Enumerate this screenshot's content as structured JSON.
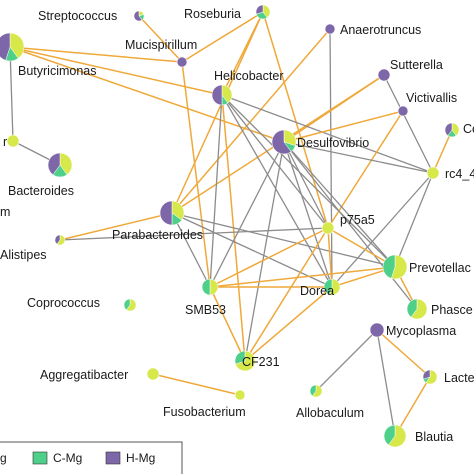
{
  "colors": {
    "low_mg": "#d6e84a",
    "c_mg": "#4fd08a",
    "h_mg": "#7e67a8",
    "edge_positive": "#efa93a",
    "edge_negative": "#8c8c8c",
    "legend_border": "#555555"
  },
  "nodes": [
    {
      "id": "Streptococcus",
      "label": "Streptococcus",
      "shares": [
        0.2,
        0.2,
        0.6
      ]
    },
    {
      "id": "Roseburia",
      "label": "Roseburia",
      "shares": [
        0.4,
        0.3,
        0.3
      ]
    },
    {
      "id": "Anaerotruncus",
      "label": "Anaerotruncus",
      "shares": [
        0,
        0,
        1
      ]
    },
    {
      "id": "Butyricimonas",
      "label": "Butyricimonas",
      "shares": [
        0.4,
        0.15,
        0.45
      ]
    },
    {
      "id": "Mucispirillum",
      "label": "Mucispirillum",
      "shares": [
        0,
        0,
        1
      ]
    },
    {
      "id": "Sutterella",
      "label": "Sutterella",
      "shares": [
        0,
        0,
        1
      ]
    },
    {
      "id": "Helicobacter",
      "label": "Helicobacter",
      "shares": [
        0.4,
        0.1,
        0.5
      ]
    },
    {
      "id": "Victivallis",
      "label": "Victivallis",
      "shares": [
        0,
        0,
        1
      ]
    },
    {
      "id": "Desulfovibrio",
      "label": "Desulfovibrio",
      "shares": [
        0.3,
        0.1,
        0.6
      ]
    },
    {
      "id": "Ce",
      "label": "Ce",
      "shares": [
        0.4,
        0.2,
        0.4
      ]
    },
    {
      "id": "r_left",
      "label": "r",
      "shares": [
        1,
        0,
        0
      ]
    },
    {
      "id": "Bacteroides",
      "label": "Bacteroides",
      "shares": [
        0.4,
        0.2,
        0.4
      ]
    },
    {
      "id": "rc4_4",
      "label": "rc4_4",
      "shares": [
        1,
        0,
        0
      ]
    },
    {
      "id": "m_left",
      "label": "m",
      "shares": [
        1,
        0,
        0
      ]
    },
    {
      "id": "p75a5",
      "label": "p75a5",
      "shares": [
        1,
        0,
        0
      ]
    },
    {
      "id": "Parabacteroides",
      "label": "Parabacteroides",
      "shares": [
        0.35,
        0.15,
        0.5
      ]
    },
    {
      "id": "Alistipes",
      "label": "Alistipes",
      "shares": [
        0.6,
        0,
        0.4
      ]
    },
    {
      "id": "Prevotella",
      "label": "Prevotellac",
      "shares": [
        0.55,
        0.45,
        0
      ]
    },
    {
      "id": "Dorea",
      "label": "Dorea",
      "shares": [
        0.55,
        0.45,
        0
      ]
    },
    {
      "id": "SMB53",
      "label": "SMB53",
      "shares": [
        0.5,
        0.5,
        0
      ]
    },
    {
      "id": "Coprococcus",
      "label": "Coprococcus",
      "shares": [
        0.6,
        0.4,
        0
      ]
    },
    {
      "id": "Phascolarctobacterium",
      "label": "Phasce",
      "shares": [
        0.6,
        0.4,
        0
      ]
    },
    {
      "id": "Mycoplasma",
      "label": "Mycoplasma",
      "shares": [
        0,
        0,
        1
      ]
    },
    {
      "id": "CF231",
      "label": "CF231",
      "shares": [
        0.7,
        0.3,
        0
      ]
    },
    {
      "id": "Aggregatibacter",
      "label": "Aggregatibacter",
      "shares": [
        1,
        0,
        0
      ]
    },
    {
      "id": "Lactobacillus",
      "label": "Lacte",
      "shares": [
        0.6,
        0.1,
        0.3
      ]
    },
    {
      "id": "Fusobacterium",
      "label": "Fusobacterium",
      "shares": [
        1,
        0,
        0
      ]
    },
    {
      "id": "Allobaculum",
      "label": "Allobaculum",
      "shares": [
        0.6,
        0.4,
        0
      ]
    },
    {
      "id": "Blautia",
      "label": "Blautia",
      "shares": [
        0.6,
        0.4,
        0
      ]
    }
  ],
  "edges": [
    {
      "s": "Streptococcus",
      "t": "Mucispirillum",
      "kind": "positive"
    },
    {
      "s": "Roseburia",
      "t": "Mucispirillum",
      "kind": "positive"
    },
    {
      "s": "Roseburia",
      "t": "Helicobacter",
      "kind": "positive"
    },
    {
      "s": "Roseburia",
      "t": "Parabacteroides",
      "kind": "positive"
    },
    {
      "s": "Roseburia",
      "t": "p75a5",
      "kind": "positive"
    },
    {
      "s": "Anaerotruncus",
      "t": "Parabacteroides",
      "kind": "positive"
    },
    {
      "s": "Anaerotruncus",
      "t": "Dorea",
      "kind": "negative"
    },
    {
      "s": "Butyricimonas",
      "t": "Mucispirillum",
      "kind": "positive"
    },
    {
      "s": "Butyricimonas",
      "t": "Helicobacter",
      "kind": "positive"
    },
    {
      "s": "Butyricimonas",
      "t": "Desulfovibrio",
      "kind": "positive"
    },
    {
      "s": "Butyricimonas",
      "t": "r_left",
      "kind": "negative"
    },
    {
      "s": "Mucispirillum",
      "t": "SMB53",
      "kind": "positive"
    },
    {
      "s": "Sutterella",
      "t": "Parabacteroides",
      "kind": "positive"
    },
    {
      "s": "Sutterella",
      "t": "Desulfovibrio",
      "kind": "positive"
    },
    {
      "s": "Sutterella",
      "t": "rc4_4",
      "kind": "negative"
    },
    {
      "s": "Helicobacter",
      "t": "SMB53",
      "kind": "negative"
    },
    {
      "s": "Helicobacter",
      "t": "Dorea",
      "kind": "negative"
    },
    {
      "s": "Helicobacter",
      "t": "Prevotella",
      "kind": "negative"
    },
    {
      "s": "Helicobacter",
      "t": "CF231",
      "kind": "positive"
    },
    {
      "s": "Helicobacter",
      "t": "p75a5",
      "kind": "negative"
    },
    {
      "s": "Helicobacter",
      "t": "rc4_4",
      "kind": "negative"
    },
    {
      "s": "Victivallis",
      "t": "Desulfovibrio",
      "kind": "positive"
    },
    {
      "s": "Victivallis",
      "t": "p75a5",
      "kind": "positive"
    },
    {
      "s": "Desulfovibrio",
      "t": "SMB53",
      "kind": "negative"
    },
    {
      "s": "Desulfovibrio",
      "t": "Dorea",
      "kind": "negative"
    },
    {
      "s": "Desulfovibrio",
      "t": "Prevotella",
      "kind": "negative"
    },
    {
      "s": "Desulfovibrio",
      "t": "CF231",
      "kind": "negative"
    },
    {
      "s": "Desulfovibrio",
      "t": "Phascolarctobacterium",
      "kind": "negative"
    },
    {
      "s": "Desulfovibrio",
      "t": "p75a5",
      "kind": "negative"
    },
    {
      "s": "Desulfovibrio",
      "t": "rc4_4",
      "kind": "negative"
    },
    {
      "s": "Ce",
      "t": "rc4_4",
      "kind": "positive"
    },
    {
      "s": "r_left",
      "t": "Bacteroides",
      "kind": "negative"
    },
    {
      "s": "rc4_4",
      "t": "Dorea",
      "kind": "negative"
    },
    {
      "s": "rc4_4",
      "t": "Prevotella",
      "kind": "negative"
    },
    {
      "s": "Parabacteroides",
      "t": "Alistipes",
      "kind": "positive"
    },
    {
      "s": "Parabacteroides",
      "t": "Dorea",
      "kind": "negative"
    },
    {
      "s": "Parabacteroides",
      "t": "Prevotella",
      "kind": "negative"
    },
    {
      "s": "Parabacteroides",
      "t": "SMB53",
      "kind": "negative"
    },
    {
      "s": "Alistipes",
      "t": "p75a5",
      "kind": "negative"
    },
    {
      "s": "p75a5",
      "t": "SMB53",
      "kind": "positive"
    },
    {
      "s": "p75a5",
      "t": "CF231",
      "kind": "positive"
    },
    {
      "s": "p75a5",
      "t": "Dorea",
      "kind": "positive"
    },
    {
      "s": "p75a5",
      "t": "Prevotella",
      "kind": "positive"
    },
    {
      "s": "Prevotella",
      "t": "Dorea",
      "kind": "positive"
    },
    {
      "s": "Prevotella",
      "t": "Phascolarctobacterium",
      "kind": "positive"
    },
    {
      "s": "Prevotella",
      "t": "SMB53",
      "kind": "positive"
    },
    {
      "s": "Dorea",
      "t": "SMB53",
      "kind": "positive"
    },
    {
      "s": "Dorea",
      "t": "CF231",
      "kind": "positive"
    },
    {
      "s": "SMB53",
      "t": "CF231",
      "kind": "positive"
    },
    {
      "s": "Mycoplasma",
      "t": "Allobaculum",
      "kind": "negative"
    },
    {
      "s": "Mycoplasma",
      "t": "Blautia",
      "kind": "negative"
    },
    {
      "s": "Mycoplasma",
      "t": "Lactobacillus",
      "kind": "positive"
    },
    {
      "s": "Lactobacillus",
      "t": "Blautia",
      "kind": "positive"
    },
    {
      "s": "Aggregatibacter",
      "t": "Fusobacterium",
      "kind": "positive"
    }
  ],
  "legend": [
    {
      "key": "low_mg",
      "label": "g"
    },
    {
      "key": "c_mg",
      "label": "C-Mg"
    },
    {
      "key": "h_mg",
      "label": "H-Mg"
    }
  ]
}
